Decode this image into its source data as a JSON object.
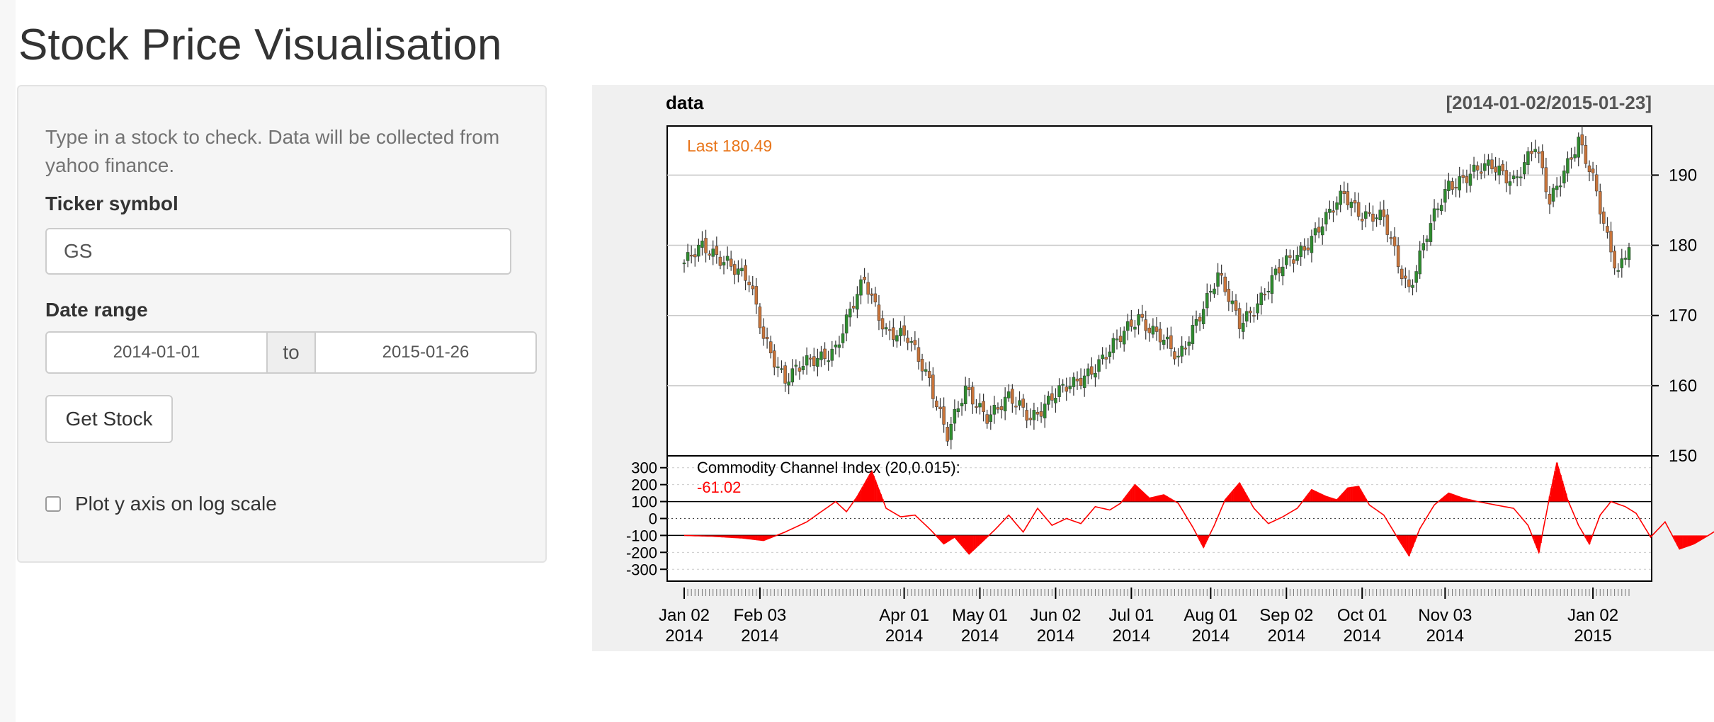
{
  "page": {
    "title": "Stock Price Visualisation"
  },
  "sidebar": {
    "help_text": "Type in a stock to check. Data will be collected from yahoo finance.",
    "ticker_label": "Ticker symbol",
    "ticker_value": "GS",
    "date_range_label": "Date range",
    "date_start": "2014-01-01",
    "date_separator": "to",
    "date_end": "2015-01-26",
    "get_stock_label": "Get Stock",
    "log_scale_label": "Plot y axis on log scale",
    "log_scale_checked": false
  },
  "chart_data": {
    "type": "candlestick",
    "title": "data",
    "range_label": "[2014-01-02/2015-01-23]",
    "last_label": "Last 180.49",
    "price_axis": {
      "ticks": [
        150,
        160,
        170,
        180,
        190
      ],
      "ylim": [
        150,
        197
      ]
    },
    "price_close_trajectory": [
      {
        "day": 0,
        "close": 177.5
      },
      {
        "day": 5,
        "close": 179.5
      },
      {
        "day": 12,
        "close": 178.0
      },
      {
        "day": 18,
        "close": 174.5
      },
      {
        "day": 22,
        "close": 167.0
      },
      {
        "day": 28,
        "close": 161.0
      },
      {
        "day": 34,
        "close": 163.0
      },
      {
        "day": 42,
        "close": 165.5
      },
      {
        "day": 50,
        "close": 175.0
      },
      {
        "day": 56,
        "close": 168.0
      },
      {
        "day": 62,
        "close": 166.5
      },
      {
        "day": 68,
        "close": 161.0
      },
      {
        "day": 73,
        "close": 153.0
      },
      {
        "day": 78,
        "close": 159.0
      },
      {
        "day": 84,
        "close": 156.0
      },
      {
        "day": 90,
        "close": 158.0
      },
      {
        "day": 96,
        "close": 155.5
      },
      {
        "day": 102,
        "close": 158.5
      },
      {
        "day": 108,
        "close": 160.0
      },
      {
        "day": 114,
        "close": 163.0
      },
      {
        "day": 120,
        "close": 166.0
      },
      {
        "day": 126,
        "close": 170.0
      },
      {
        "day": 132,
        "close": 167.0
      },
      {
        "day": 137,
        "close": 163.5
      },
      {
        "day": 142,
        "close": 169.5
      },
      {
        "day": 148,
        "close": 175.5
      },
      {
        "day": 154,
        "close": 169.0
      },
      {
        "day": 160,
        "close": 172.5
      },
      {
        "day": 166,
        "close": 177.0
      },
      {
        "day": 172,
        "close": 180.0
      },
      {
        "day": 178,
        "close": 183.5
      },
      {
        "day": 183,
        "close": 187.5
      },
      {
        "day": 188,
        "close": 184.5
      },
      {
        "day": 194,
        "close": 183.5
      },
      {
        "day": 198,
        "close": 177.5
      },
      {
        "day": 201,
        "close": 174.0
      },
      {
        "day": 206,
        "close": 181.5
      },
      {
        "day": 212,
        "close": 188.5
      },
      {
        "day": 218,
        "close": 190.5
      },
      {
        "day": 224,
        "close": 191.0
      },
      {
        "day": 230,
        "close": 189.5
      },
      {
        "day": 236,
        "close": 194.0
      },
      {
        "day": 240,
        "close": 186.0
      },
      {
        "day": 244,
        "close": 191.0
      },
      {
        "day": 248,
        "close": 195.0
      },
      {
        "day": 252,
        "close": 189.0
      },
      {
        "day": 256,
        "close": 181.0
      },
      {
        "day": 259,
        "close": 176.5
      },
      {
        "day": 262,
        "close": 180.5
      }
    ],
    "indicator": {
      "name": "Commodity Channel Index (20,0.015):",
      "last_value": "-61.02",
      "ticks": [
        300,
        200,
        100,
        0,
        -100,
        -200,
        -300
      ],
      "ylim": [
        -370,
        370
      ],
      "trajectory": [
        {
          "day": 0,
          "value": -100
        },
        {
          "day": 8,
          "value": -105
        },
        {
          "day": 16,
          "value": -115
        },
        {
          "day": 22,
          "value": -130
        },
        {
          "day": 28,
          "value": -80
        },
        {
          "day": 34,
          "value": -20
        },
        {
          "day": 38,
          "value": 40
        },
        {
          "day": 42,
          "value": 100
        },
        {
          "day": 45,
          "value": 40
        },
        {
          "day": 48,
          "value": 130
        },
        {
          "day": 52,
          "value": 280
        },
        {
          "day": 56,
          "value": 60
        },
        {
          "day": 60,
          "value": 10
        },
        {
          "day": 64,
          "value": 20
        },
        {
          "day": 68,
          "value": -60
        },
        {
          "day": 72,
          "value": -150
        },
        {
          "day": 75,
          "value": -110
        },
        {
          "day": 79,
          "value": -210
        },
        {
          "day": 82,
          "value": -150
        },
        {
          "day": 86,
          "value": -70
        },
        {
          "day": 90,
          "value": 20
        },
        {
          "day": 94,
          "value": -80
        },
        {
          "day": 98,
          "value": 60
        },
        {
          "day": 102,
          "value": -40
        },
        {
          "day": 106,
          "value": 0
        },
        {
          "day": 110,
          "value": -30
        },
        {
          "day": 114,
          "value": 70
        },
        {
          "day": 118,
          "value": 50
        },
        {
          "day": 121,
          "value": 90
        },
        {
          "day": 125,
          "value": 200
        },
        {
          "day": 129,
          "value": 120
        },
        {
          "day": 133,
          "value": 140
        },
        {
          "day": 137,
          "value": 90
        },
        {
          "day": 141,
          "value": -50
        },
        {
          "day": 144,
          "value": -170
        },
        {
          "day": 147,
          "value": -40
        },
        {
          "day": 150,
          "value": 110
        },
        {
          "day": 154,
          "value": 210
        },
        {
          "day": 158,
          "value": 60
        },
        {
          "day": 162,
          "value": -30
        },
        {
          "day": 166,
          "value": 10
        },
        {
          "day": 170,
          "value": 60
        },
        {
          "day": 174,
          "value": 170
        },
        {
          "day": 178,
          "value": 130
        },
        {
          "day": 181,
          "value": 110
        },
        {
          "day": 184,
          "value": 180
        },
        {
          "day": 187,
          "value": 190
        },
        {
          "day": 190,
          "value": 80
        },
        {
          "day": 194,
          "value": 20
        },
        {
          "day": 198,
          "value": -120
        },
        {
          "day": 201,
          "value": -220
        },
        {
          "day": 204,
          "value": -60
        },
        {
          "day": 208,
          "value": 80
        },
        {
          "day": 212,
          "value": 150
        },
        {
          "day": 216,
          "value": 120
        },
        {
          "day": 220,
          "value": 100
        },
        {
          "day": 225,
          "value": 80
        },
        {
          "day": 230,
          "value": 60
        },
        {
          "day": 234,
          "value": -40
        },
        {
          "day": 237,
          "value": -200
        },
        {
          "day": 240,
          "value": 130
        },
        {
          "day": 242,
          "value": 330
        },
        {
          "day": 245,
          "value": 110
        },
        {
          "day": 248,
          "value": -40
        },
        {
          "day": 251,
          "value": -150
        },
        {
          "day": 254,
          "value": 20
        },
        {
          "day": 257,
          "value": 100
        },
        {
          "day": 261,
          "value": 70
        },
        {
          "day": 264,
          "value": 30
        },
        {
          "day": 268,
          "value": -110
        },
        {
          "day": 272,
          "value": -20
        },
        {
          "day": 276,
          "value": -180
        },
        {
          "day": 280,
          "value": -150
        },
        {
          "day": 284,
          "value": -100
        },
        {
          "day": 287,
          "value": -60
        }
      ]
    },
    "x_axis": {
      "ticks": [
        {
          "day": 0,
          "label": "Jan 02\n2014"
        },
        {
          "day": 21,
          "label": "Feb 03\n2014"
        },
        {
          "day": 61,
          "label": "Apr 01\n2014"
        },
        {
          "day": 82,
          "label": "May 01\n2014"
        },
        {
          "day": 103,
          "label": "Jun 02\n2014"
        },
        {
          "day": 124,
          "label": "Jul 01\n2014"
        },
        {
          "day": 146,
          "label": "Aug 01\n2014"
        },
        {
          "day": 167,
          "label": "Sep 02\n2014"
        },
        {
          "day": 188,
          "label": "Oct 01\n2014"
        },
        {
          "day": 211,
          "label": "Nov 03\n2014"
        },
        {
          "day": 252,
          "label": "Jan 02\n2015"
        }
      ],
      "day_range": [
        0,
        262
      ]
    },
    "colors": {
      "up": "#2e8b2e",
      "down": "#c8743a",
      "last_label": "#e8751a",
      "cci_line": "#ff0000",
      "cci_fill": "#ff0000"
    }
  }
}
